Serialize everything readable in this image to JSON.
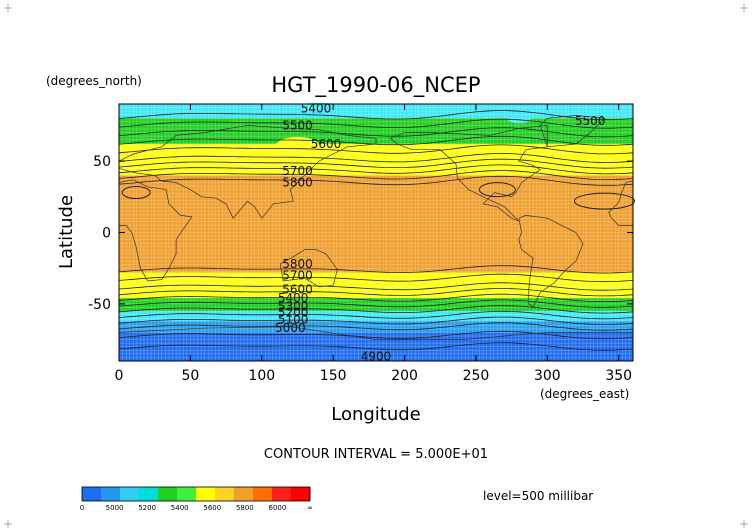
{
  "title": "HGT_1990-06_NCEP",
  "y_units": "(degrees_north)",
  "x_units": "(degrees_east)",
  "xlabel": "Longitude",
  "ylabel": "Latitude",
  "contour_interval": "CONTOUR INTERVAL = 5.000E+01",
  "level_note": "level=500 millibar",
  "chart_data": {
    "type": "heatmap",
    "title": "HGT_1990-06_NCEP",
    "xlabel": "Longitude",
    "ylabel": "Latitude",
    "xlim": [
      0,
      360
    ],
    "ylim": [
      -90,
      90
    ],
    "x_ticks": [
      "0",
      "50",
      "100",
      "150",
      "200",
      "250",
      "300",
      "350"
    ],
    "x_tick_values": [
      0,
      50,
      100,
      150,
      200,
      250,
      300,
      350
    ],
    "y_ticks": [
      "50",
      "0",
      "-50"
    ],
    "y_tick_values": [
      50,
      0,
      -50
    ],
    "grid": true,
    "zonal_bands": [
      {
        "lat": [
          80,
          90
        ],
        "class": 3
      },
      {
        "lat": [
          62,
          80
        ],
        "class": 4
      },
      {
        "lat": [
          47,
          62
        ],
        "class": 5
      },
      {
        "lat": [
          40,
          47
        ],
        "class": 6
      },
      {
        "lat": [
          -28,
          40
        ],
        "class": 7
      },
      {
        "lat": [
          -38,
          -28
        ],
        "class": 6
      },
      {
        "lat": [
          -46,
          -38
        ],
        "class": 5
      },
      {
        "lat": [
          -55,
          -46
        ],
        "class": 4
      },
      {
        "lat": [
          -62,
          -55
        ],
        "class": 3
      },
      {
        "lat": [
          -70,
          -62
        ],
        "class": 2
      },
      {
        "lat": [
          -90,
          -70
        ],
        "class": 1
      }
    ],
    "contour_labels": [
      {
        "text": "5400",
        "lon": 138,
        "lat": 87
      },
      {
        "text": "5500",
        "lon": 125,
        "lat": 75
      },
      {
        "text": "5500",
        "lon": 330,
        "lat": 78
      },
      {
        "text": "5600",
        "lon": 145,
        "lat": 62
      },
      {
        "text": "5700",
        "lon": 125,
        "lat": 43
      },
      {
        "text": "5800",
        "lon": 125,
        "lat": 35
      },
      {
        "text": "5800",
        "lon": 125,
        "lat": -22
      },
      {
        "text": "5700",
        "lon": 125,
        "lat": -30
      },
      {
        "text": "5600",
        "lon": 125,
        "lat": -40
      },
      {
        "text": "5400",
        "lon": 122,
        "lat": -46
      },
      {
        "text": "5300",
        "lon": 122,
        "lat": -52
      },
      {
        "text": "5200",
        "lon": 122,
        "lat": -56
      },
      {
        "text": "5100",
        "lon": 122,
        "lat": -61
      },
      {
        "text": "5000",
        "lon": 120,
        "lat": -67
      },
      {
        "text": "4900",
        "lon": 180,
        "lat": -87
      }
    ]
  },
  "colorbar": {
    "labels": [
      "0",
      "5000",
      "5200",
      "5400",
      "5600",
      "5800",
      "6000",
      "∞"
    ],
    "colors": [
      "#1e6cf0",
      "#2396ee",
      "#33ccf4",
      "#00dcdc",
      "#20d020",
      "#40ee40",
      "#ffff00",
      "#ffd226",
      "#f0a030",
      "#ff7000",
      "#ff2020",
      "#ff0000"
    ],
    "class_colors": [
      "#1e6cf0",
      "#1e6cf0",
      "#28a0f0",
      "#40e8f8",
      "#20d020",
      "#ffff10",
      "#ffff10",
      "#f0a030",
      "#f0a030",
      "#ff2020"
    ]
  }
}
